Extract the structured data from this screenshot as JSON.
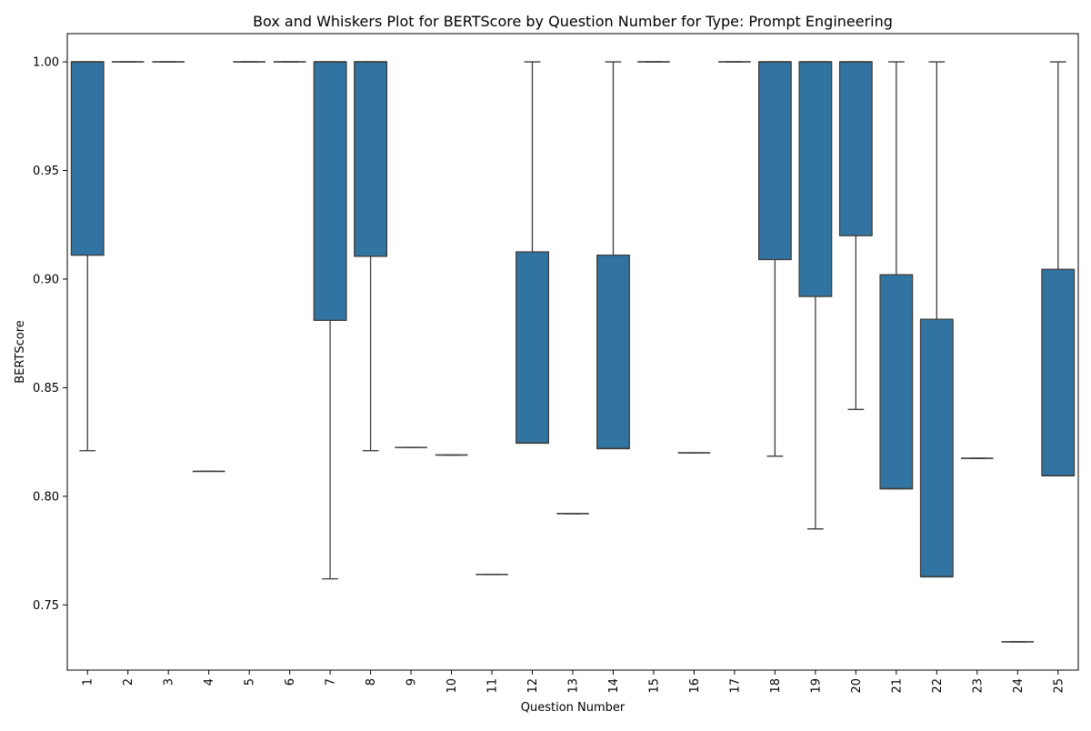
{
  "chart_data": {
    "type": "box",
    "title": "Box and Whiskers Plot for BERTScore by Question Number for Type: Prompt Engineering",
    "xlabel": "Question Number",
    "ylabel": "BERTScore",
    "ylim": [
      0.72,
      1.013
    ],
    "yticks": [
      "0.75",
      "0.80",
      "0.85",
      "0.90",
      "0.95",
      "1.00"
    ],
    "grid": false,
    "legend": "none",
    "box_color": "#3274a1",
    "edge_color": "#3d3d3d",
    "categories": [
      "1",
      "2",
      "3",
      "4",
      "5",
      "6",
      "7",
      "8",
      "9",
      "10",
      "11",
      "12",
      "13",
      "14",
      "15",
      "16",
      "17",
      "18",
      "19",
      "20",
      "21",
      "22",
      "23",
      "24",
      "25"
    ],
    "boxes": [
      {
        "whislo": 0.821,
        "q1": 0.911,
        "med": 1.0,
        "q3": 1.0,
        "whishi": 1.0
      },
      {
        "whislo": 1.0,
        "q1": 1.0,
        "med": 1.0,
        "q3": 1.0,
        "whishi": 1.0
      },
      {
        "whislo": 1.0,
        "q1": 1.0,
        "med": 1.0,
        "q3": 1.0,
        "whishi": 1.0
      },
      {
        "whislo": 0.8115,
        "q1": 0.8115,
        "med": 0.8115,
        "q3": 0.8115,
        "whishi": 0.8115
      },
      {
        "whislo": 1.0,
        "q1": 1.0,
        "med": 1.0,
        "q3": 1.0,
        "whishi": 1.0
      },
      {
        "whislo": 1.0,
        "q1": 1.0,
        "med": 1.0,
        "q3": 1.0,
        "whishi": 1.0
      },
      {
        "whislo": 0.762,
        "q1": 0.881,
        "med": 1.0,
        "q3": 1.0,
        "whishi": 1.0
      },
      {
        "whislo": 0.821,
        "q1": 0.9105,
        "med": 1.0,
        "q3": 1.0,
        "whishi": 1.0
      },
      {
        "whislo": 0.8225,
        "q1": 0.8225,
        "med": 0.8225,
        "q3": 0.8225,
        "whishi": 0.8225
      },
      {
        "whislo": 0.819,
        "q1": 0.819,
        "med": 0.819,
        "q3": 0.819,
        "whishi": 0.819
      },
      {
        "whislo": 0.764,
        "q1": 0.764,
        "med": 0.764,
        "q3": 0.764,
        "whishi": 0.764
      },
      {
        "whislo": 0.8245,
        "q1": 0.8245,
        "med": 0.8245,
        "q3": 0.9125,
        "whishi": 1.0
      },
      {
        "whislo": 0.792,
        "q1": 0.792,
        "med": 0.792,
        "q3": 0.792,
        "whishi": 0.792
      },
      {
        "whislo": 0.822,
        "q1": 0.822,
        "med": 0.822,
        "q3": 0.911,
        "whishi": 1.0
      },
      {
        "whislo": 1.0,
        "q1": 1.0,
        "med": 1.0,
        "q3": 1.0,
        "whishi": 1.0
      },
      {
        "whislo": 0.82,
        "q1": 0.82,
        "med": 0.82,
        "q3": 0.82,
        "whishi": 0.82
      },
      {
        "whislo": 1.0,
        "q1": 1.0,
        "med": 1.0,
        "q3": 1.0,
        "whishi": 1.0
      },
      {
        "whislo": 0.8185,
        "q1": 0.909,
        "med": 1.0,
        "q3": 1.0,
        "whishi": 1.0
      },
      {
        "whislo": 0.785,
        "q1": 0.892,
        "med": 1.0,
        "q3": 1.0,
        "whishi": 1.0
      },
      {
        "whislo": 0.84,
        "q1": 0.92,
        "med": 1.0,
        "q3": 1.0,
        "whishi": 1.0
      },
      {
        "whislo": 0.8035,
        "q1": 0.8035,
        "med": 0.8035,
        "q3": 0.902,
        "whishi": 1.0
      },
      {
        "whislo": 0.763,
        "q1": 0.763,
        "med": 0.763,
        "q3": 0.8815,
        "whishi": 1.0
      },
      {
        "whislo": 0.8175,
        "q1": 0.8175,
        "med": 0.8175,
        "q3": 0.8175,
        "whishi": 0.8175
      },
      {
        "whislo": 0.733,
        "q1": 0.733,
        "med": 0.733,
        "q3": 0.733,
        "whishi": 0.733
      },
      {
        "whislo": 0.8095,
        "q1": 0.8095,
        "med": 0.8095,
        "q3": 0.9045,
        "whishi": 1.0
      }
    ]
  }
}
